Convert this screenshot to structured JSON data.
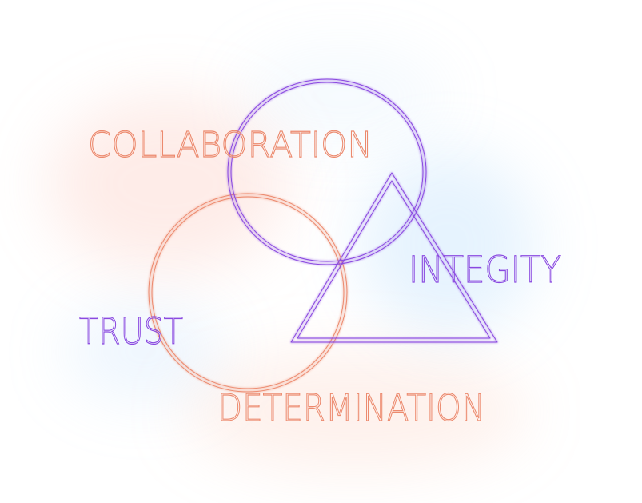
{
  "colors": {
    "coral": "#ec8a6e",
    "violet": "#8a49e0",
    "background": "#ffffff",
    "warm_glow": "#fbb39c",
    "cool_glow": "#9dcdf6"
  },
  "labels": {
    "collaboration": "COLLABORATION",
    "integrity": "INTEGITY",
    "trust": "TRUST",
    "determination": "DETERMINATION"
  }
}
